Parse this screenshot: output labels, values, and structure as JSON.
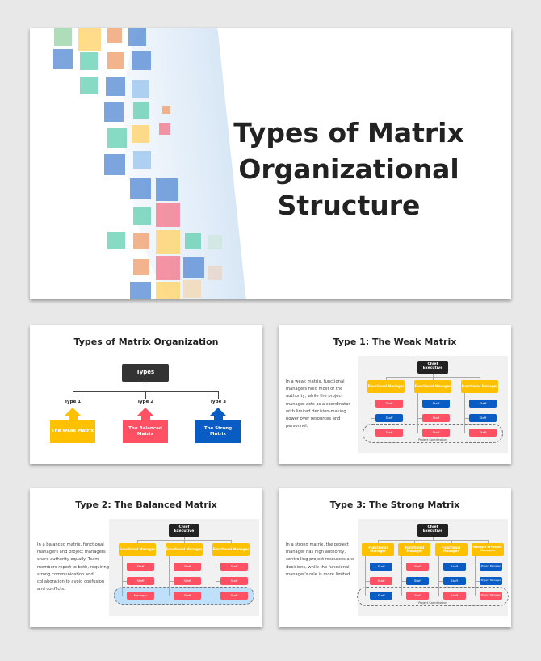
{
  "colors": {
    "yellow": "#ffc000",
    "red": "#ff5064",
    "blue": "#0a5cc5",
    "dark": "#222222",
    "panel": "#f1f1f1"
  },
  "cover": {
    "title_lines": [
      "Types of Matrix",
      "Organizational",
      "Structure"
    ]
  },
  "types_slide": {
    "title": "Types of Matrix Organization",
    "root": "Types",
    "types": [
      {
        "label": "Type 1",
        "box": "The Weak Matrix",
        "color": "yellow"
      },
      {
        "label": "Type 2",
        "box": "The Balanced Matrix",
        "color": "red"
      },
      {
        "label": "Type 3",
        "box": "The Strong Matrix",
        "color": "blue"
      }
    ]
  },
  "matrix_slides": [
    {
      "title": "Type 1: The Weak Matrix",
      "description": "In a weak matrix, functional managers hold most of the authority, while the project manager acts as a coordinator with limited decision-making power over resources and personnel.",
      "chief": "Chief Executive",
      "coordination_label": "Project Coordination",
      "highlight": false,
      "columns": [
        {
          "head": "Functional Manager",
          "items": [
            {
              "t": "Staff",
              "c": "red"
            },
            {
              "t": "Staff",
              "c": "blue"
            },
            {
              "t": "Staff",
              "c": "red"
            }
          ]
        },
        {
          "head": "Functional Manager",
          "items": [
            {
              "t": "Staff",
              "c": "blue"
            },
            {
              "t": "Staff",
              "c": "red"
            },
            {
              "t": "Staff",
              "c": "red"
            }
          ]
        },
        {
          "head": "Functional Manager",
          "items": [
            {
              "t": "Staff",
              "c": "blue"
            },
            {
              "t": "Staff",
              "c": "blue"
            },
            {
              "t": "Staff",
              "c": "red"
            }
          ]
        }
      ]
    },
    {
      "title": "Type 2: The Balanced Matrix",
      "description": "In a balanced matrix, functional managers and project managers share authority equally. Team members report to both, requiring strong communication and collaboration to avoid confusion and conflicts.",
      "chief": "Chief Executive",
      "coordination_label": "",
      "highlight": true,
      "columns": [
        {
          "head": "Functional Manager",
          "items": [
            {
              "t": "Staff",
              "c": "red"
            },
            {
              "t": "Staff",
              "c": "red"
            },
            {
              "t": "Manager",
              "c": "red"
            }
          ]
        },
        {
          "head": "Functional Manager",
          "items": [
            {
              "t": "Staff",
              "c": "red"
            },
            {
              "t": "Staff",
              "c": "red"
            },
            {
              "t": "Staff",
              "c": "red"
            }
          ]
        },
        {
          "head": "Functional Manager",
          "items": [
            {
              "t": "Staff",
              "c": "red"
            },
            {
              "t": "Staff",
              "c": "red"
            },
            {
              "t": "Staff",
              "c": "red"
            }
          ]
        }
      ]
    },
    {
      "title": "Type 3: The Strong Matrix",
      "description": "In a strong matrix, the project manager has high authority, controlling project resources and decisions, while the functional manager's role is more limited.",
      "chief": "Chief Executive",
      "coordination_label": "Project Coordination",
      "highlight": false,
      "columns": [
        {
          "head": "Functional Manager",
          "items": [
            {
              "t": "Staff",
              "c": "blue"
            },
            {
              "t": "Staff",
              "c": "red"
            },
            {
              "t": "Staff",
              "c": "blue"
            }
          ]
        },
        {
          "head": "Functional Manager",
          "items": [
            {
              "t": "Staff",
              "c": "red"
            },
            {
              "t": "Staff",
              "c": "blue"
            },
            {
              "t": "Staff",
              "c": "red"
            }
          ]
        },
        {
          "head": "Functional Manager",
          "items": [
            {
              "t": "Staff",
              "c": "blue"
            },
            {
              "t": "Staff",
              "c": "blue"
            },
            {
              "t": "Staff",
              "c": "red"
            }
          ]
        },
        {
          "head": "Manager of Project Managers",
          "items": [
            {
              "t": "Project Manager",
              "c": "blue"
            },
            {
              "t": "Project Manager",
              "c": "blue"
            },
            {
              "t": "Project Manager",
              "c": "red"
            }
          ]
        }
      ]
    }
  ]
}
